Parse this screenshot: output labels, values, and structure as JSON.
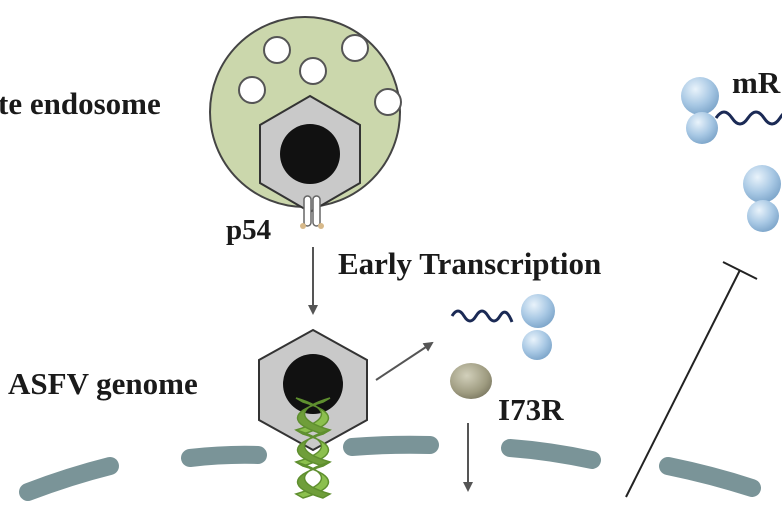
{
  "labels": {
    "late_endosome": "te endosome",
    "p54": "p54",
    "early_transcription": "Early Transcription",
    "asfv_genome": "ASFV genome",
    "i73r": "I73R",
    "mrna": "mR"
  },
  "colors": {
    "endosome_fill": "#cbd7ac",
    "capsid_fill": "#c9c9c9",
    "ribosome": "#a8c8e4",
    "dna_strand": "#6f9e3a",
    "membrane": "#7a9498",
    "i73r_protein": "#9e9b80",
    "arrow": "#555555"
  }
}
